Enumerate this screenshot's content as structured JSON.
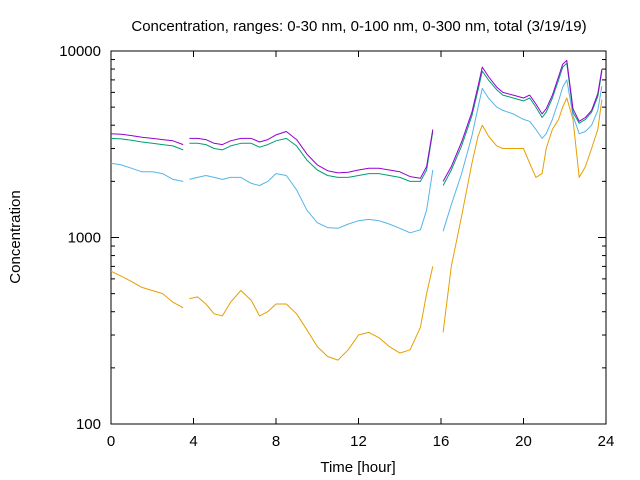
{
  "chart_data": {
    "type": "line",
    "title": "Concentration, ranges: 0-30 nm, 0-100 nm, 0-300 nm, total (3/19/19)",
    "xlabel": "Time [hour]",
    "ylabel": "Concentration",
    "xlim": [
      0,
      24
    ],
    "ylim": [
      100,
      10000
    ],
    "yscale": "log",
    "xticks": [
      0,
      4,
      8,
      12,
      16,
      20,
      24
    ],
    "xtick_labels": [
      "0",
      "4",
      "8",
      "12",
      "16",
      "20",
      "24"
    ],
    "yticks": [
      100,
      1000,
      10000
    ],
    "ytick_labels": [
      "100",
      "1000",
      "10000"
    ],
    "grid": false,
    "legend": "none",
    "colors": [
      "#e69f00",
      "#56b4e9",
      "#009e73",
      "#9400d3"
    ],
    "series": [
      {
        "x": [
          0,
          0.5,
          1,
          1.5,
          2,
          2.5,
          3,
          3.5,
          3.6,
          3.8,
          4.2,
          4.6,
          5.0,
          5.4,
          5.8,
          6.3,
          6.8,
          7.2,
          7.6,
          8.0,
          8.5,
          9.0,
          9.5,
          10.0,
          10.5,
          11.0,
          11.5,
          12.0,
          12.5,
          13.0,
          13.5,
          14.0,
          14.5,
          15.0,
          15.3,
          15.6,
          15.8,
          16.1,
          16.5,
          17.0,
          17.5,
          17.8,
          18.0,
          18.3,
          18.7,
          19.0,
          19.5,
          20.0,
          20.3,
          20.6,
          20.9,
          21.1,
          21.4,
          21.7,
          21.9,
          22.1,
          22.4,
          22.7,
          23.0,
          23.3,
          23.6,
          23.8
        ],
        "values": [
          660,
          620,
          580,
          540,
          520,
          500,
          450,
          420,
          null,
          470,
          480,
          440,
          390,
          380,
          450,
          520,
          460,
          380,
          400,
          440,
          440,
          390,
          320,
          260,
          230,
          220,
          250,
          300,
          310,
          290,
          260,
          240,
          250,
          330,
          500,
          700,
          null,
          310,
          700,
          1300,
          2500,
          3500,
          4000,
          3500,
          3100,
          3000,
          3000,
          3000,
          2500,
          2100,
          2200,
          3000,
          3800,
          4300,
          5000,
          5600,
          4300,
          2100,
          2400,
          3000,
          3800,
          5500
        ]
      },
      {
        "x": [
          0,
          0.5,
          1,
          1.5,
          2,
          2.5,
          3,
          3.5,
          3.6,
          3.8,
          4.2,
          4.6,
          5.0,
          5.4,
          5.8,
          6.3,
          6.8,
          7.2,
          7.6,
          8.0,
          8.5,
          9.0,
          9.5,
          10.0,
          10.5,
          11.0,
          11.5,
          12.0,
          12.5,
          13.0,
          13.5,
          14.0,
          14.5,
          15.0,
          15.3,
          15.6,
          15.8,
          16.1,
          16.5,
          17.0,
          17.5,
          17.8,
          18.0,
          18.3,
          18.7,
          19.0,
          19.5,
          20.0,
          20.3,
          20.6,
          20.9,
          21.1,
          21.4,
          21.7,
          21.9,
          22.1,
          22.4,
          22.7,
          23.0,
          23.3,
          23.6,
          23.8
        ],
        "values": [
          2500,
          2450,
          2350,
          2250,
          2250,
          2200,
          2050,
          2000,
          null,
          2050,
          2100,
          2150,
          2100,
          2050,
          2100,
          2100,
          1950,
          1900,
          2000,
          2200,
          2150,
          1800,
          1400,
          1200,
          1130,
          1120,
          1180,
          1230,
          1250,
          1230,
          1180,
          1120,
          1060,
          1100,
          1400,
          2300,
          null,
          1080,
          1500,
          2200,
          3500,
          5000,
          6300,
          5600,
          5000,
          4800,
          4600,
          4300,
          4200,
          3800,
          3400,
          3600,
          4300,
          5400,
          6400,
          7000,
          4500,
          3600,
          3700,
          4000,
          4800,
          6500
        ]
      },
      {
        "x": [
          0,
          0.5,
          1,
          1.5,
          2,
          2.5,
          3,
          3.5,
          3.6,
          3.8,
          4.2,
          4.6,
          5.0,
          5.4,
          5.8,
          6.3,
          6.8,
          7.2,
          7.6,
          8.0,
          8.5,
          9.0,
          9.5,
          10.0,
          10.5,
          11.0,
          11.5,
          12.0,
          12.5,
          13.0,
          13.5,
          14.0,
          14.5,
          15.0,
          15.3,
          15.6,
          15.8,
          16.1,
          16.5,
          17.0,
          17.5,
          17.8,
          18.0,
          18.3,
          18.7,
          19.0,
          19.5,
          20.0,
          20.3,
          20.6,
          20.9,
          21.1,
          21.4,
          21.7,
          21.9,
          22.1,
          22.4,
          22.7,
          23.0,
          23.3,
          23.6,
          23.8
        ],
        "values": [
          3400,
          3380,
          3320,
          3250,
          3200,
          3150,
          3100,
          2950,
          null,
          3200,
          3200,
          3150,
          3000,
          2950,
          3100,
          3200,
          3200,
          3050,
          3150,
          3300,
          3400,
          3100,
          2600,
          2300,
          2150,
          2100,
          2100,
          2150,
          2200,
          2200,
          2150,
          2100,
          2000,
          2000,
          2300,
          3700,
          null,
          1900,
          2300,
          3100,
          4500,
          6200,
          7800,
          7000,
          6200,
          5800,
          5600,
          5400,
          5600,
          5000,
          4400,
          4700,
          5600,
          7000,
          8200,
          8600,
          4700,
          4100,
          4300,
          4700,
          5700,
          7800
        ]
      },
      {
        "x": [
          0,
          0.5,
          1,
          1.5,
          2,
          2.5,
          3,
          3.5,
          3.6,
          3.8,
          4.2,
          4.6,
          5.0,
          5.4,
          5.8,
          6.3,
          6.8,
          7.2,
          7.6,
          8.0,
          8.5,
          9.0,
          9.5,
          10.0,
          10.5,
          11.0,
          11.5,
          12.0,
          12.5,
          13.0,
          13.5,
          14.0,
          14.5,
          15.0,
          15.3,
          15.6,
          15.8,
          16.1,
          16.5,
          17.0,
          17.5,
          17.8,
          18.0,
          18.3,
          18.7,
          19.0,
          19.5,
          20.0,
          20.3,
          20.6,
          20.9,
          21.1,
          21.4,
          21.7,
          21.9,
          22.1,
          22.4,
          22.7,
          23.0,
          23.3,
          23.6,
          23.8
        ],
        "values": [
          3600,
          3580,
          3520,
          3450,
          3400,
          3350,
          3300,
          3150,
          null,
          3400,
          3400,
          3350,
          3200,
          3150,
          3300,
          3400,
          3400,
          3250,
          3350,
          3550,
          3700,
          3350,
          2800,
          2450,
          2280,
          2220,
          2240,
          2300,
          2350,
          2350,
          2300,
          2250,
          2120,
          2080,
          2400,
          3800,
          null,
          2000,
          2400,
          3250,
          4700,
          6500,
          8200,
          7300,
          6400,
          6000,
          5800,
          5600,
          5800,
          5200,
          4600,
          4900,
          5800,
          7300,
          8500,
          8900,
          4900,
          4200,
          4400,
          4800,
          5900,
          8000
        ]
      }
    ]
  }
}
